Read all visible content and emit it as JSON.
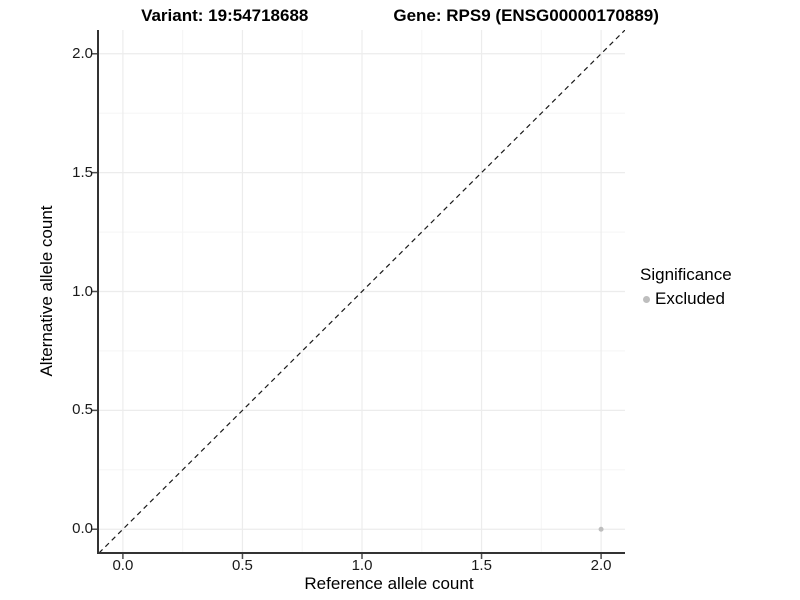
{
  "header": {
    "variant_title": "Variant: 19:54718688",
    "gene_title": "Gene: RPS9 (ENSG00000170889)"
  },
  "legend": {
    "title": "Significance",
    "items": [
      {
        "label": "Excluded",
        "color": "#bebebe",
        "marker": "circle-icon"
      }
    ]
  },
  "chart_data": {
    "type": "scatter",
    "title": "Variant: 19:54718688    Gene: RPS9 (ENSG00000170889)",
    "xlabel": "Reference allele count",
    "ylabel": "Alternative allele count",
    "xlim": [
      -0.1,
      2.1
    ],
    "ylim": [
      -0.1,
      2.1
    ],
    "x_ticks": [
      0.0,
      0.5,
      1.0,
      1.5,
      2.0
    ],
    "y_ticks": [
      0.0,
      0.5,
      1.0,
      1.5,
      2.0
    ],
    "x_tick_labels": [
      "0.0",
      "0.5",
      "1.0",
      "1.5",
      "2.0"
    ],
    "y_tick_labels": [
      "0.0",
      "0.5",
      "1.0",
      "1.5",
      "2.0"
    ],
    "grid": "major+minor",
    "legend_position": "right",
    "series": [
      {
        "name": "Excluded",
        "color": "#bebebe",
        "marker": "circle",
        "points": [
          {
            "x": 2.0,
            "y": 0.0
          }
        ]
      }
    ],
    "reference_line": {
      "kind": "identity",
      "slope": 1,
      "intercept": 0,
      "linetype": "dashed",
      "color": "#1a1a1a"
    }
  },
  "colors": {
    "background": "#ffffff",
    "grid_major": "#ececec",
    "grid_minor": "#f5f5f5",
    "axis_line": "#333333",
    "tick_mark": "#4d4d4d",
    "tick_text": "#1a1a1a",
    "title_text": "#000000",
    "point": "#bebebe"
  }
}
